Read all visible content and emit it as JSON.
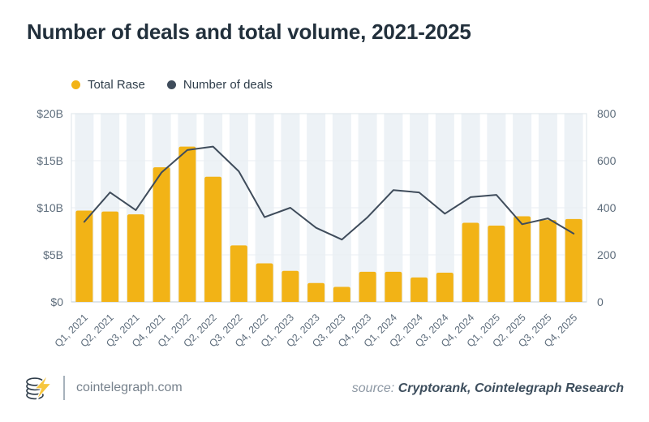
{
  "title": "Number of deals and total volume, 2021-2025",
  "legend": [
    {
      "label": "Total Rase",
      "color": "#f2b316"
    },
    {
      "label": "Number of deals",
      "color": "#3f4c5b"
    }
  ],
  "footer": {
    "site": "cointelegraph.com",
    "source_label": "source:",
    "source_value": "Cryptorank, Cointelegraph Research"
  },
  "colors": {
    "title": "#22303c",
    "bar": "#f2b316",
    "line": "#3f4c5b",
    "axis_label": "#5d6c7b",
    "x_label": "#5e6d7c",
    "gridline": "#e9eef3",
    "stripe": "#edf2f6",
    "plot_border": "#dce4ea",
    "baseline": "#c9d5dd"
  },
  "chart_data": {
    "type": "bar+line",
    "title": "Number of deals and total volume, 2021-2025",
    "categories": [
      "Q1, 2021",
      "Q2, 2021",
      "Q3, 2021",
      "Q4, 2021",
      "Q1, 2022",
      "Q2, 2022",
      "Q3, 2022",
      "Q4, 2022",
      "Q1, 2023",
      "Q2, 2023",
      "Q3, 2023",
      "Q4, 2023",
      "Q1, 2024",
      "Q2, 2024",
      "Q3, 2024",
      "Q4, 2024",
      "Q1, 2025",
      "Q2, 2025",
      "Q3, 2025",
      "Q4, 2025"
    ],
    "series": [
      {
        "name": "Total Rase",
        "type": "bar",
        "axis": "left",
        "unit": "USD billions",
        "color": "#f2b316",
        "values": [
          9.7,
          9.6,
          9.3,
          14.3,
          16.5,
          13.3,
          6.0,
          4.1,
          3.3,
          2.0,
          1.6,
          3.2,
          3.2,
          2.6,
          3.1,
          8.4,
          8.1,
          9.1,
          8.7,
          8.8
        ]
      },
      {
        "name": "Number of deals",
        "type": "line",
        "axis": "right",
        "unit": "deals",
        "color": "#3f4c5b",
        "values": [
          340,
          465,
          390,
          550,
          645,
          660,
          555,
          360,
          400,
          315,
          265,
          360,
          475,
          465,
          375,
          445,
          455,
          330,
          355,
          290
        ]
      }
    ],
    "left_axis": {
      "ticks": [
        "$0",
        "$5B",
        "$10B",
        "$15B",
        "$20B"
      ],
      "range": [
        0,
        20
      ]
    },
    "right_axis": {
      "ticks": [
        "0",
        "200",
        "400",
        "600",
        "800"
      ],
      "range": [
        0,
        800
      ]
    },
    "grid": "horizontal",
    "background_stripes": true,
    "legend_position": "top-left"
  }
}
